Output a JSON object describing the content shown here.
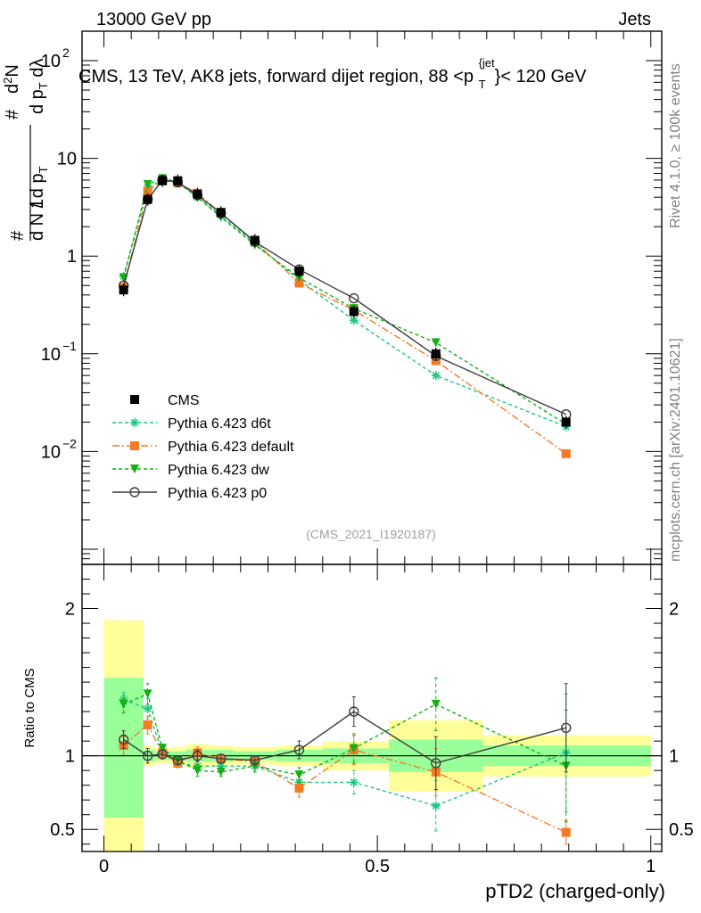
{
  "header": {
    "energy_label": "13000 GeV pp",
    "category_label": "Jets",
    "side_label_top": "Rivet 4.1.0, ≥ 100k events",
    "side_label_bottom": "mcplots.cern.ch [arXiv:2401.10621]",
    "analysis_id": "(CMS_2021_I1920187)"
  },
  "colors": {
    "data": "#000000",
    "d6t": "#1dc77f",
    "default": "#f47a26",
    "dw": "#14b014",
    "p0": "#3c3c3c",
    "band_yellow": "#ffff99",
    "band_green": "#99ff99"
  },
  "chart_data": [
    {
      "type": "scatter",
      "title": "CMS, 13 TeV, AK8 jets, forward dijet region, 88 <p_T^{jet}< 120 GeV",
      "ylabel": "1/(dN/dp_T) d²N/(dp_T dλ)",
      "yscale": "log",
      "ylim": [
        0.0007,
        200
      ],
      "xlim": [
        -0.04,
        1.02
      ],
      "y_ticks": [
        {
          "value": 0.01,
          "label": "10",
          "sup": "−2"
        },
        {
          "value": 0.1,
          "label": "10",
          "sup": "−1"
        },
        {
          "value": 1,
          "label": "1",
          "sup": ""
        },
        {
          "value": 10,
          "label": "10",
          "sup": ""
        },
        {
          "value": 100,
          "label": "10",
          "sup": "2"
        }
      ],
      "x": [
        0.036,
        0.08,
        0.107,
        0.135,
        0.171,
        0.214,
        0.276,
        0.357,
        0.457,
        0.607,
        0.845
      ],
      "series": [
        {
          "name": "CMS",
          "key": "data",
          "marker": "square",
          "values": [
            0.45,
            3.8,
            5.9,
            5.9,
            4.3,
            2.8,
            1.45,
            0.7,
            0.27,
            0.1,
            0.02
          ]
        },
        {
          "name": "Pythia 6.423 d6t",
          "key": "d6t",
          "marker": "star",
          "values": [
            0.62,
            5.0,
            6.0,
            5.6,
            4.0,
            2.6,
            1.35,
            0.57,
            0.22,
            0.06,
            0.018
          ]
        },
        {
          "name": "Pythia 6.423 default",
          "key": "default",
          "marker": "square",
          "values": [
            0.48,
            4.6,
            6.0,
            5.6,
            4.4,
            2.75,
            1.4,
            0.53,
            0.28,
            0.085,
            0.0095
          ]
        },
        {
          "name": "Pythia 6.423 dw",
          "key": "dw",
          "marker": "triangle-down",
          "values": [
            0.6,
            5.4,
            6.2,
            5.8,
            4.0,
            2.5,
            1.3,
            0.6,
            0.29,
            0.13,
            0.019
          ]
        },
        {
          "name": "Pythia 6.423 p0",
          "key": "p0",
          "marker": "circle-open",
          "values": [
            0.5,
            3.8,
            6.0,
            5.7,
            4.2,
            2.75,
            1.4,
            0.73,
            0.37,
            0.095,
            0.024
          ]
        }
      ]
    },
    {
      "type": "scatter",
      "title": "",
      "xlabel": "pTD2 (charged-only)",
      "ylabel": "Ratio to CMS",
      "ylim": [
        0.35,
        2.3
      ],
      "xlim": [
        -0.04,
        1.02
      ],
      "x_ticks": [
        {
          "value": 0,
          "label": "0"
        },
        {
          "value": 0.5,
          "label": "0.5"
        },
        {
          "value": 1,
          "label": "1"
        }
      ],
      "y_ticks": [
        {
          "value": 0.5,
          "label": "0.5"
        },
        {
          "value": 1,
          "label": "1"
        },
        {
          "value": 2,
          "label": "2"
        }
      ],
      "bands": [
        {
          "x0": 0.0,
          "x1": 0.072,
          "yellow": [
            0.35,
            1.92
          ],
          "green": [
            0.58,
            1.53
          ]
        },
        {
          "x0": 0.072,
          "x1": 0.093,
          "yellow": [
            0.93,
            1.07
          ],
          "green": [
            0.96,
            1.04
          ]
        },
        {
          "x0": 0.093,
          "x1": 0.121,
          "yellow": [
            0.95,
            1.05
          ],
          "green": [
            0.97,
            1.03
          ]
        },
        {
          "x0": 0.121,
          "x1": 0.15,
          "yellow": [
            0.94,
            1.06
          ],
          "green": [
            0.97,
            1.03
          ]
        },
        {
          "x0": 0.15,
          "x1": 0.193,
          "yellow": [
            0.92,
            1.08
          ],
          "green": [
            0.96,
            1.04
          ]
        },
        {
          "x0": 0.193,
          "x1": 0.236,
          "yellow": [
            0.93,
            1.07
          ],
          "green": [
            0.96,
            1.04
          ]
        },
        {
          "x0": 0.236,
          "x1": 0.314,
          "yellow": [
            0.94,
            1.06
          ],
          "green": [
            0.97,
            1.03
          ]
        },
        {
          "x0": 0.314,
          "x1": 0.4,
          "yellow": [
            0.93,
            1.07
          ],
          "green": [
            0.96,
            1.04
          ]
        },
        {
          "x0": 0.4,
          "x1": 0.521,
          "yellow": [
            0.9,
            1.1
          ],
          "green": [
            0.95,
            1.05
          ]
        },
        {
          "x0": 0.521,
          "x1": 0.693,
          "yellow": [
            0.76,
            1.24
          ],
          "green": [
            0.89,
            1.11
          ]
        },
        {
          "x0": 0.693,
          "x1": 1.0,
          "yellow": [
            0.86,
            1.14
          ],
          "green": [
            0.93,
            1.07
          ]
        }
      ],
      "x": [
        0.036,
        0.08,
        0.107,
        0.135,
        0.171,
        0.214,
        0.276,
        0.357,
        0.457,
        0.607,
        0.845
      ],
      "series": [
        {
          "name": "Pythia 6.423 d6t",
          "key": "d6t",
          "marker": "star",
          "values": [
            1.38,
            1.32,
            1.02,
            0.95,
            0.93,
            0.93,
            0.93,
            0.82,
            0.82,
            0.66,
            1.02
          ],
          "errors": [
            0.05,
            0.07,
            0.03,
            0.03,
            0.04,
            0.03,
            0.04,
            0.05,
            0.08,
            0.17,
            0.4
          ]
        },
        {
          "name": "Pythia 6.423 default",
          "key": "default",
          "marker": "square",
          "values": [
            1.07,
            1.21,
            1.02,
            0.95,
            1.02,
            0.98,
            0.96,
            0.78,
            1.04,
            0.89,
            0.48
          ],
          "errors": [
            0.06,
            0.06,
            0.03,
            0.03,
            0.04,
            0.03,
            0.03,
            0.06,
            0.1,
            0.16,
            0.08
          ]
        },
        {
          "name": "Pythia 6.423 dw",
          "key": "dw",
          "marker": "triangle-down",
          "values": [
            1.35,
            1.42,
            1.05,
            0.97,
            0.9,
            0.89,
            0.93,
            0.87,
            1.05,
            1.35,
            0.93
          ],
          "errors": [
            0.06,
            0.07,
            0.03,
            0.03,
            0.04,
            0.03,
            0.04,
            0.05,
            0.1,
            0.18,
            0.38
          ]
        },
        {
          "name": "Pythia 6.423 p0",
          "key": "p0",
          "marker": "circle-open",
          "values": [
            1.11,
            1.0,
            1.01,
            0.97,
            1.0,
            0.98,
            0.97,
            1.04,
            1.3,
            0.95,
            1.19
          ],
          "errors": [
            0.06,
            0.05,
            0.03,
            0.03,
            0.04,
            0.03,
            0.03,
            0.06,
            0.1,
            0.18,
            0.3
          ]
        }
      ]
    }
  ]
}
